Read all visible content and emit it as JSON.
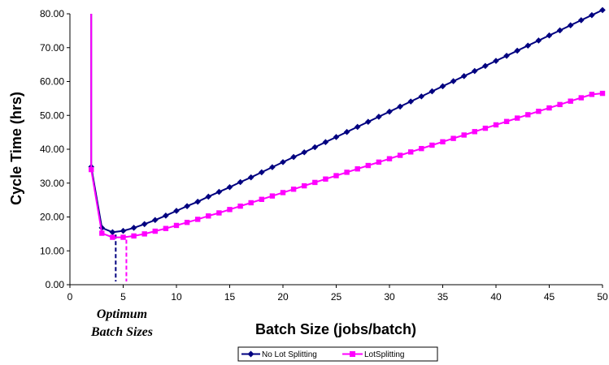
{
  "chart_data": {
    "type": "line",
    "title": "",
    "xlabel": "Batch Size (jobs/batch)",
    "ylabel": "Cycle Time (hrs)",
    "xlim": [
      0,
      50
    ],
    "ylim": [
      0,
      80
    ],
    "x_ticks": [
      "0",
      "5",
      "10",
      "15",
      "20",
      "25",
      "30",
      "35",
      "40",
      "45",
      "50"
    ],
    "y_ticks": [
      "0.00",
      "10.00",
      "20.00",
      "30.00",
      "40.00",
      "50.00",
      "60.00",
      "70.00",
      "80.00"
    ],
    "grid": false,
    "legend_position": "bottom",
    "annotation": [
      "Optimum",
      "Batch Sizes"
    ],
    "optimum_markers": [
      {
        "series": "No Lot Splitting",
        "x": 4.3,
        "y": 15.5,
        "color": "#000080"
      },
      {
        "series": "LotSplitting",
        "x": 5.3,
        "y": 14.0,
        "color": "#ff00ff"
      }
    ],
    "series": [
      {
        "name": "No Lot Splitting",
        "color": "#000080",
        "marker": "diamond",
        "x": [
          2,
          3,
          4,
          5,
          6,
          7,
          8,
          9,
          10,
          11,
          12,
          13,
          14,
          15,
          16,
          17,
          18,
          19,
          20,
          21,
          22,
          23,
          24,
          25,
          26,
          27,
          28,
          29,
          30,
          31,
          32,
          33,
          34,
          35,
          36,
          37,
          38,
          39,
          40,
          41,
          42,
          43,
          44,
          45,
          46,
          47,
          48,
          49,
          50
        ],
        "values": [
          34.8,
          16.8,
          15.5,
          15.9,
          16.8,
          17.9,
          19.1,
          20.4,
          21.8,
          23.2,
          24.5,
          26.0,
          27.4,
          28.8,
          30.3,
          31.7,
          33.2,
          34.7,
          36.2,
          37.7,
          39.1,
          40.6,
          42.1,
          43.6,
          45.1,
          46.6,
          48.1,
          49.6,
          51.1,
          52.6,
          54.1,
          55.6,
          57.1,
          58.6,
          60.1,
          61.6,
          63.1,
          64.6,
          66.1,
          67.6,
          69.1,
          70.6,
          72.1,
          73.6,
          75.1,
          76.6,
          78.1,
          79.6,
          81.1
        ]
      },
      {
        "name": "LotSplitting",
        "color": "#ff00ff",
        "marker": "square",
        "x": [
          2,
          3,
          4,
          5,
          6,
          7,
          8,
          9,
          10,
          11,
          12,
          13,
          14,
          15,
          16,
          17,
          18,
          19,
          20,
          21,
          22,
          23,
          24,
          25,
          26,
          27,
          28,
          29,
          30,
          31,
          32,
          33,
          34,
          35,
          36,
          37,
          38,
          39,
          40,
          41,
          42,
          43,
          44,
          45,
          46,
          47,
          48,
          49,
          50
        ],
        "values": [
          34.0,
          15.2,
          14.0,
          14.0,
          14.4,
          15.0,
          15.8,
          16.6,
          17.5,
          18.4,
          19.3,
          20.3,
          21.2,
          22.2,
          23.2,
          24.2,
          25.2,
          26.2,
          27.2,
          28.2,
          29.2,
          30.2,
          31.2,
          32.2,
          33.2,
          34.2,
          35.2,
          36.2,
          37.2,
          38.2,
          39.2,
          40.2,
          41.2,
          42.2,
          43.2,
          44.2,
          45.2,
          46.2,
          47.2,
          48.2,
          49.2,
          50.2,
          51.2,
          52.2,
          53.2,
          54.2,
          55.2,
          56.2,
          56.5
        ]
      }
    ]
  }
}
